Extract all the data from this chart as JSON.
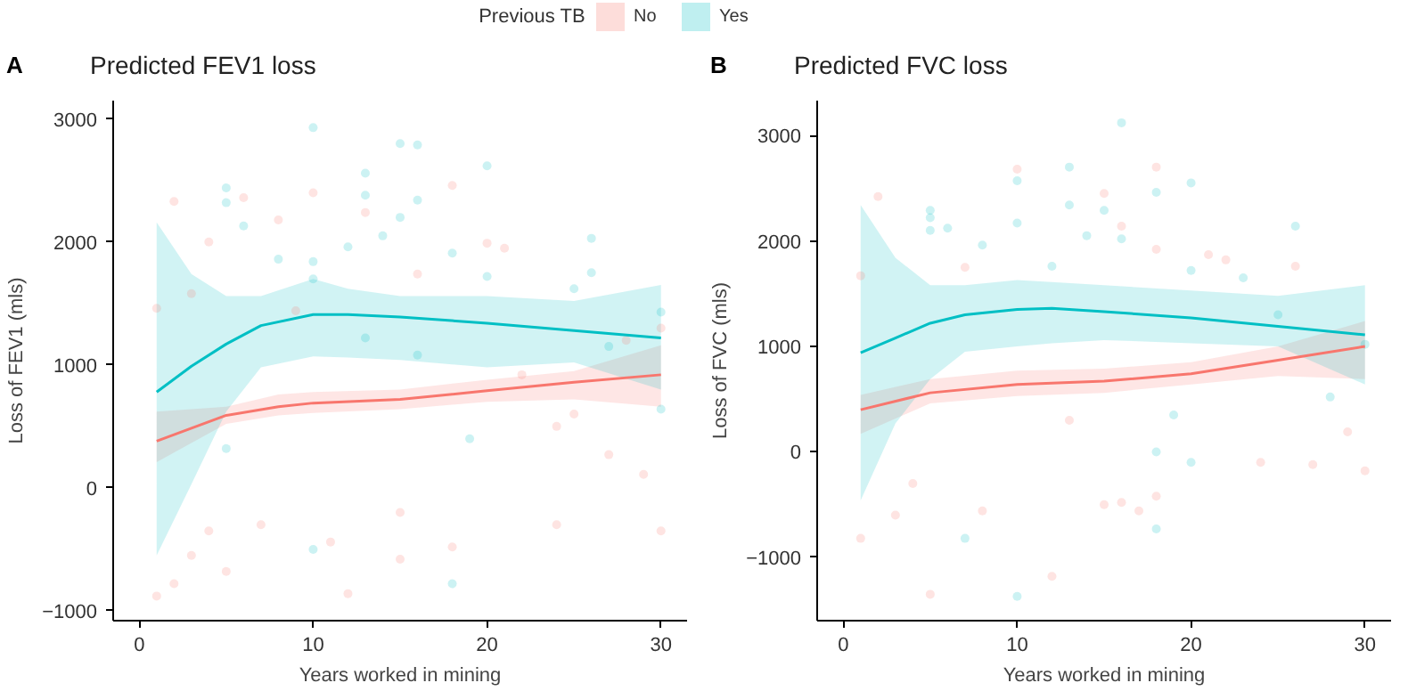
{
  "chart_data": [
    {
      "type": "line",
      "title": "Predicted FEV1 loss",
      "annotations": [
        "A"
      ],
      "xlabel": "Years worked in mining",
      "ylabel": "Loss of FEV1 (mls)",
      "legend_title": "Previous TB",
      "legend": "top",
      "grid": false,
      "xlim": [
        -1.5,
        31.5
      ],
      "ylim": [
        -1080,
        3150
      ],
      "xticks": [
        0,
        10,
        20,
        30
      ],
      "yticks": [
        -1000,
        0,
        1000,
        2000,
        3000
      ],
      "series": [
        {
          "type": "scatter",
          "color": "#f8766d",
          "x": [
            1,
            2,
            12,
            3,
            5,
            15,
            18,
            11,
            24,
            30,
            2,
            10,
            18,
            13,
            6,
            4,
            8,
            20,
            21,
            16,
            1,
            9,
            3,
            28,
            22,
            25,
            27,
            29,
            30,
            24,
            15,
            7,
            4
          ],
          "values": [
            -880,
            -780,
            -860,
            -550,
            -680,
            -580,
            -480,
            -440,
            -300,
            -350,
            2330,
            2400,
            2460,
            2240,
            2360,
            2000,
            2180,
            1990,
            1950,
            1740,
            1460,
            1440,
            1580,
            1200,
            920,
            600,
            270,
            110,
            1300,
            500,
            -200,
            -300,
            -350
          ]
        },
        {
          "type": "scatter",
          "color": "#00bfc4",
          "x": [
            10,
            15,
            16,
            13,
            20,
            5,
            5,
            16,
            13,
            15,
            6,
            14,
            26,
            8,
            10,
            12,
            18,
            10,
            20,
            26,
            25,
            13,
            27,
            30,
            30,
            19,
            10,
            18,
            5,
            16
          ],
          "values": [
            2930,
            2800,
            2790,
            2560,
            2620,
            2440,
            2320,
            2340,
            2380,
            2200,
            2130,
            2050,
            2030,
            1860,
            1840,
            1960,
            1910,
            1700,
            1720,
            1750,
            1620,
            1220,
            1150,
            1430,
            640,
            400,
            -500,
            -780,
            320,
            1080
          ]
        },
        {
          "name": "No",
          "color": "#f8766d",
          "x": [
            1,
            5,
            8,
            10,
            15,
            20,
            25,
            30
          ],
          "values": [
            380,
            590,
            660,
            690,
            720,
            790,
            860,
            920
          ],
          "lower": [
            210,
            520,
            590,
            610,
            640,
            700,
            720,
            660
          ],
          "upper": [
            620,
            660,
            760,
            780,
            800,
            880,
            950,
            1160
          ]
        },
        {
          "name": "Yes",
          "color": "#00bfc4",
          "x": [
            1,
            3,
            5,
            7,
            10,
            12,
            15,
            20,
            25,
            30
          ],
          "values": [
            780,
            990,
            1170,
            1320,
            1410,
            1410,
            1390,
            1340,
            1280,
            1220
          ],
          "lower": [
            -550,
            30,
            620,
            980,
            1070,
            1060,
            1040,
            980,
            1020,
            800
          ],
          "upper": [
            2160,
            1740,
            1560,
            1560,
            1700,
            1620,
            1560,
            1560,
            1520,
            1650
          ]
        }
      ]
    },
    {
      "type": "line",
      "title": "Predicted FVC loss",
      "annotations": [
        "B"
      ],
      "xlabel": "Years worked in mining",
      "ylabel": "Loss of FVC (mls)",
      "grid": false,
      "xlim": [
        -1.5,
        31.5
      ],
      "ylim": [
        -1600,
        3330
      ],
      "xticks": [
        0,
        10,
        20,
        30
      ],
      "yticks": [
        -1000,
        0,
        1000,
        2000,
        3000
      ],
      "series": [
        {
          "type": "scatter",
          "color": "#f8766d",
          "x": [
            5,
            12,
            1,
            3,
            8,
            17,
            16,
            18,
            15,
            2,
            10,
            18,
            15,
            16,
            18,
            21,
            22,
            26,
            7,
            1,
            29,
            30,
            24,
            27,
            13,
            4
          ],
          "values": [
            -1350,
            -1180,
            -820,
            -600,
            -560,
            -560,
            -480,
            -420,
            -500,
            2420,
            2680,
            2700,
            2450,
            2140,
            1920,
            1870,
            1820,
            1760,
            1750,
            1670,
            190,
            -180,
            -100,
            -120,
            300,
            -300
          ]
        },
        {
          "type": "scatter",
          "color": "#00bfc4",
          "x": [
            16,
            13,
            10,
            20,
            18,
            13,
            15,
            5,
            5,
            6,
            8,
            14,
            16,
            26,
            10,
            12,
            20,
            23,
            25,
            28,
            30,
            19,
            18,
            20,
            7,
            18,
            10,
            5
          ],
          "values": [
            3120,
            2700,
            2570,
            2550,
            2460,
            2340,
            2290,
            2290,
            2100,
            2120,
            1960,
            2050,
            2020,
            2140,
            2170,
            1760,
            1720,
            1650,
            1300,
            520,
            1020,
            350,
            0,
            -100,
            -820,
            -730,
            -1370,
            2220
          ]
        },
        {
          "name": "No",
          "color": "#f8766d",
          "x": [
            1,
            5,
            10,
            15,
            20,
            25,
            30
          ],
          "values": [
            400,
            560,
            640,
            670,
            740,
            870,
            1000
          ],
          "lower": [
            170,
            460,
            530,
            560,
            640,
            720,
            690
          ],
          "upper": [
            540,
            690,
            770,
            790,
            850,
            1000,
            1240
          ]
        },
        {
          "name": "Yes",
          "color": "#00bfc4",
          "x": [
            1,
            3,
            5,
            7,
            10,
            12,
            15,
            20,
            25,
            30
          ],
          "values": [
            940,
            1080,
            1220,
            1300,
            1350,
            1360,
            1330,
            1270,
            1190,
            1110
          ],
          "lower": [
            -460,
            270,
            690,
            950,
            1000,
            1030,
            1060,
            1030,
            1000,
            640
          ],
          "upper": [
            2340,
            1840,
            1580,
            1580,
            1630,
            1610,
            1580,
            1530,
            1480,
            1580
          ]
        }
      ]
    }
  ]
}
